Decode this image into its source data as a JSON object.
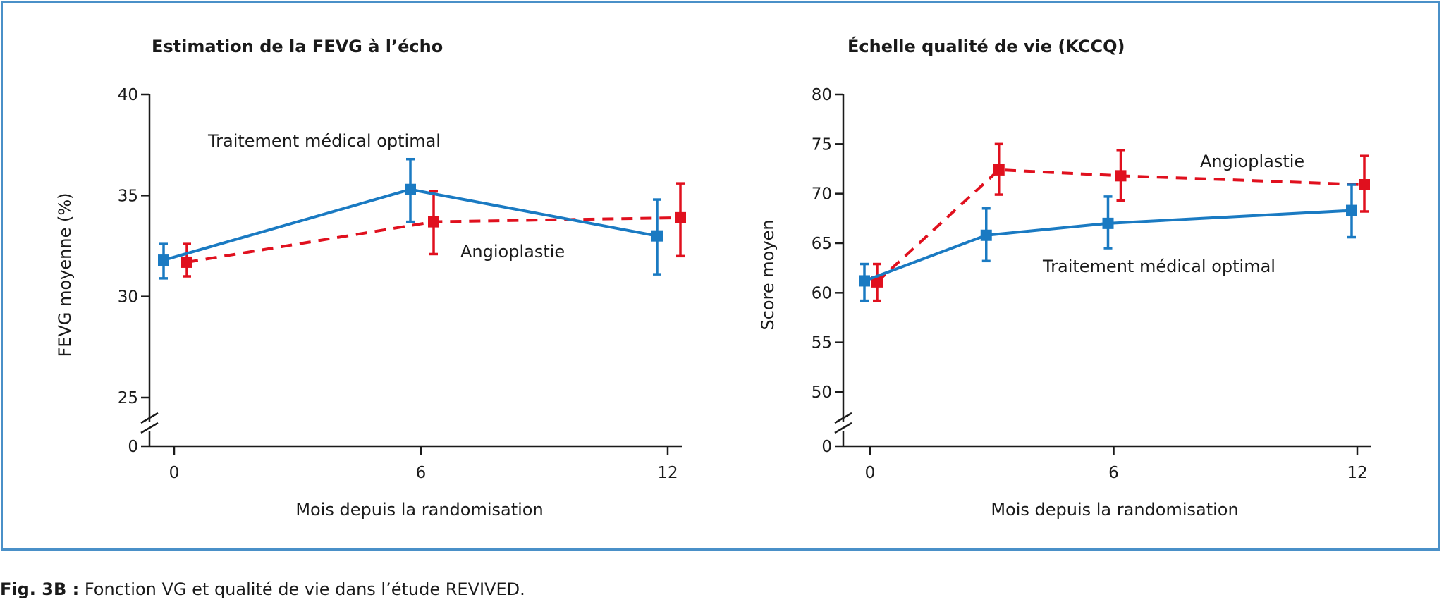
{
  "caption": {
    "label": "Fig. 3B :",
    "text": " Fonction VG et qualité de vie dans l’étude REVIVED."
  },
  "colors": {
    "tmo": "#1a7ac2",
    "angio": "#e0101e",
    "frame": "#4a90c8",
    "axis": "#1a1a1a"
  },
  "chart_data": [
    {
      "type": "line",
      "title": "Estimation de la FEVG à l’écho",
      "xlabel": "Mois depuis la randomisation",
      "ylabel": "FEVG moyenne (%)",
      "xticks": [
        0,
        6,
        12
      ],
      "yticks": [
        25,
        30,
        35,
        40
      ],
      "ylim": [
        25,
        40
      ],
      "y_axis_break": true,
      "y_zero_label": "0",
      "series": [
        {
          "name": "Traitement médical optimal",
          "style": "solid",
          "color": "#1a7ac2",
          "x": [
            0,
            6,
            12
          ],
          "y": [
            31.8,
            35.3,
            33.0
          ],
          "err_low": [
            30.9,
            33.7,
            31.1
          ],
          "err_high": [
            32.6,
            36.8,
            34.8
          ]
        },
        {
          "name": "Angioplastie",
          "style": "dashed",
          "color": "#e0101e",
          "x": [
            0,
            6,
            12
          ],
          "y": [
            31.7,
            33.7,
            33.9
          ],
          "err_low": [
            31.0,
            32.1,
            32.0
          ],
          "err_high": [
            32.6,
            35.2,
            35.6
          ]
        }
      ]
    },
    {
      "type": "line",
      "title": "Échelle qualité de vie (KCCQ)",
      "xlabel": "Mois depuis la randomisation",
      "ylabel": "Score moyen",
      "xticks": [
        0,
        6,
        12
      ],
      "yticks": [
        50,
        55,
        60,
        65,
        70,
        75,
        80
      ],
      "ylim": [
        50,
        80
      ],
      "y_axis_break": true,
      "y_zero_label": "0",
      "series": [
        {
          "name": "Traitement médical optimal",
          "style": "solid",
          "color": "#1a7ac2",
          "x": [
            0,
            3,
            6,
            12
          ],
          "y": [
            61.2,
            65.8,
            67.0,
            68.3
          ],
          "err_low": [
            59.2,
            63.2,
            64.5,
            65.6
          ],
          "err_high": [
            62.9,
            68.5,
            69.7,
            70.9
          ]
        },
        {
          "name": "Angioplastie",
          "style": "dashed",
          "color": "#e0101e",
          "x": [
            0,
            3,
            6,
            12
          ],
          "y": [
            61.1,
            72.4,
            71.8,
            70.9
          ],
          "err_low": [
            59.2,
            69.9,
            69.3,
            68.2
          ],
          "err_high": [
            62.9,
            75.0,
            74.4,
            73.8
          ]
        }
      ]
    }
  ]
}
